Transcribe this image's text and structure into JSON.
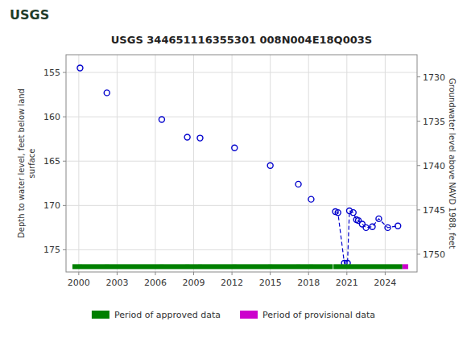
{
  "chart_data": {
    "type": "scatter",
    "title": "USGS 344651116355301 008N004E18Q003S",
    "annotations": [
      "USGS"
    ],
    "ylabel": "Depth to water level, feet below land\nsurface",
    "y2label": "Groundwater level above NAVD 1988, feet",
    "xlim": [
      1999.0,
      2026.5
    ],
    "xticks": [
      2000,
      2003,
      2006,
      2009,
      2012,
      2015,
      2018,
      2021,
      2024
    ],
    "ylim": [
      177.5,
      153
    ],
    "yticks": [
      155,
      160,
      165,
      170,
      175
    ],
    "y2lim": [
      1752,
      1727.5
    ],
    "y2ticks": [
      1730,
      1735,
      1740,
      1745,
      1750
    ],
    "grid": true,
    "legend": "bottom",
    "series": [
      {
        "type": "scatter",
        "color": "#0000cc",
        "marker": "circle",
        "line_style": "none",
        "x": [
          2000.1,
          2002.2,
          2006.5,
          2008.5,
          2009.5,
          2012.2,
          2015.0,
          2017.2,
          2018.2
        ],
        "values": [
          154.5,
          157.3,
          160.3,
          162.3,
          162.4,
          163.5,
          165.5,
          167.6,
          169.3
        ]
      },
      {
        "type": "line",
        "color": "#0000cc",
        "marker": "circle",
        "line_style": "dashed",
        "x": [
          2020.1,
          2020.3,
          2020.8,
          2021.05,
          2021.2,
          2021.5,
          2021.75,
          2021.9,
          2022.2,
          2022.5,
          2023.0,
          2023.5,
          2024.2,
          2025.0
        ],
        "values": [
          170.7,
          170.8,
          176.5,
          176.5,
          170.6,
          170.8,
          171.6,
          171.7,
          172.1,
          172.5,
          172.4,
          171.5,
          172.5,
          172.3
        ]
      },
      {
        "name": "Period of approved data",
        "type": "period",
        "color": "#008000",
        "start": [
          1999.5,
          2019.95
        ],
        "end": [
          2019.9,
          2025.35
        ],
        "values": [
          176.9,
          176.9
        ],
        "height": 0.55
      },
      {
        "name": "Period of provisional data",
        "type": "period",
        "color": "#cc00cc",
        "start": [
          2025.35
        ],
        "end": [
          2025.8
        ],
        "values": [
          176.9
        ],
        "height": 0.55
      },
      {
        "type": "scatter",
        "color": "#008000",
        "marker": "square",
        "line_style": "none",
        "x": [
          2000.1,
          2002.2,
          2006.5,
          2008.5,
          2009.5,
          2012.2,
          2015.0,
          2017.2,
          2018.2
        ],
        "values": [
          176.9,
          176.9,
          176.9,
          176.9,
          176.9,
          176.9,
          176.9,
          176.9,
          176.9
        ]
      }
    ]
  }
}
